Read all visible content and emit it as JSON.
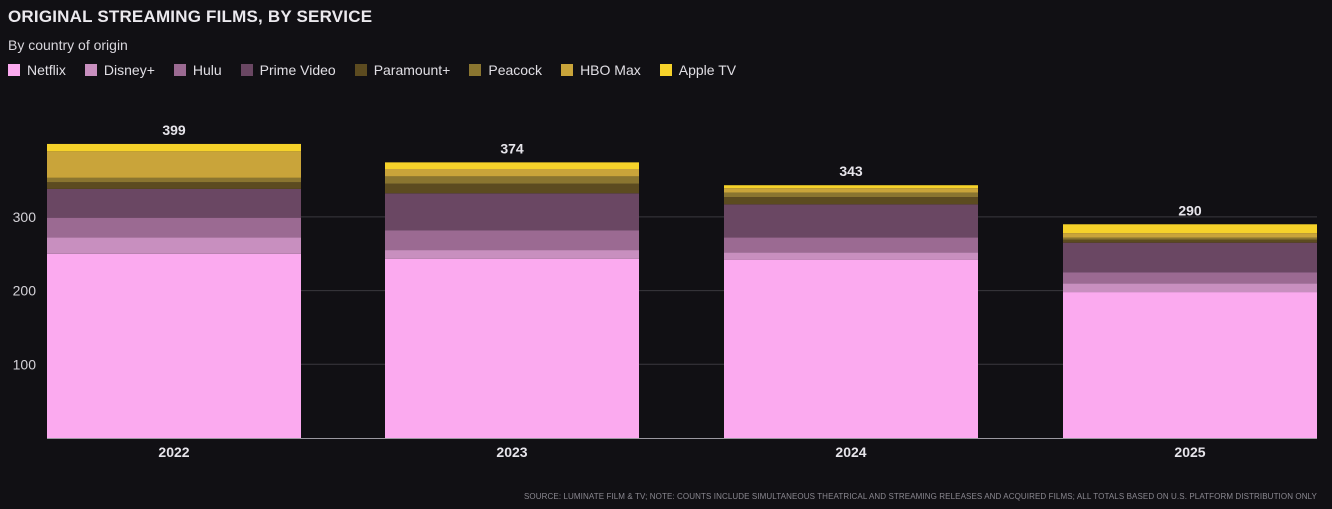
{
  "chart_data": {
    "type": "bar",
    "stacked": true,
    "title": "ORIGINAL STREAMING FILMS, BY SERVICE",
    "subtitle": "By country of origin",
    "categories": [
      "2022",
      "2023",
      "2024",
      "2025"
    ],
    "yticks": [
      100,
      200,
      300
    ],
    "ylim": [
      0,
      400
    ],
    "totals": [
      399,
      374,
      343,
      290
    ],
    "series": [
      {
        "name": "Netflix",
        "color": "#fbaaef",
        "values": [
          250,
          243,
          242,
          198
        ]
      },
      {
        "name": "Disney+",
        "color": "#c88fbf",
        "values": [
          22,
          12,
          10,
          12
        ]
      },
      {
        "name": "Hulu",
        "color": "#9b6a92",
        "values": [
          27,
          27,
          20,
          15
        ]
      },
      {
        "name": "Prime Video",
        "color": "#6a4763",
        "values": [
          39,
          50,
          45,
          40
        ]
      },
      {
        "name": "Paramount+",
        "color": "#5c4b20",
        "values": [
          9,
          13,
          10,
          4
        ]
      },
      {
        "name": "Peacock",
        "color": "#8a7530",
        "values": [
          6,
          10,
          6,
          3
        ]
      },
      {
        "name": "HBO Max",
        "color": "#c9a43a",
        "values": [
          36,
          10,
          6,
          6
        ]
      },
      {
        "name": "Apple TV",
        "color": "#f6d22a",
        "values": [
          10,
          9,
          4,
          12
        ]
      }
    ],
    "legend_placement": "top-left",
    "grid": true
  },
  "source_note": "SOURCE: LUMINATE FILM & TV; NOTE: COUNTS INCLUDE SIMULTANEOUS THEATRICAL AND STREAMING RELEASES AND ACQUIRED FILMS; ALL TOTALS BASED ON U.S. PLATFORM DISTRIBUTION ONLY"
}
